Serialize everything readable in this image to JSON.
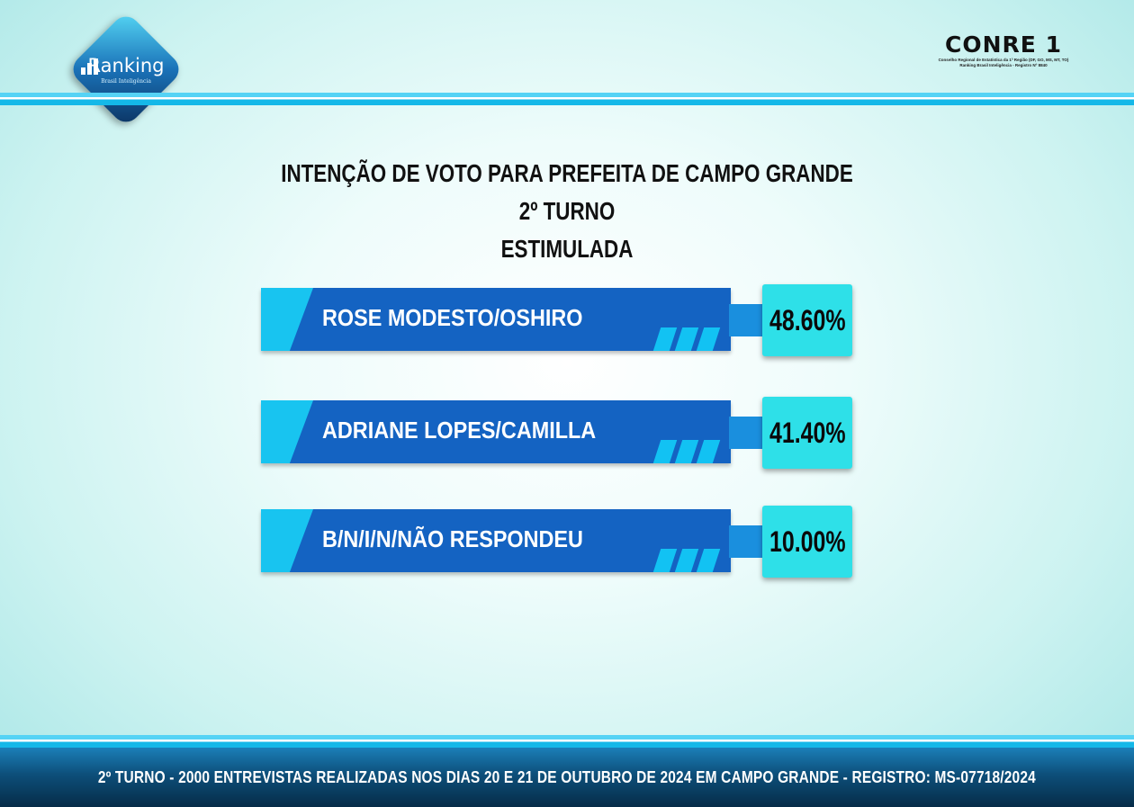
{
  "header": {
    "logo_name": "Ranking",
    "logo_tagline": "Brasil Inteligência",
    "conre_title": "CONRE 1",
    "conre_line1": "Conselho Regional de Estatística da 1ª Região (DF, GO, MS, MT, TO)",
    "conre_line2": "Ranking Brasil Inteligência - Registro Nº 8840"
  },
  "chart_data": {
    "type": "bar",
    "title_line1": "INTENÇÃO DE VOTO PARA PREFEITA DE CAMPO GRANDE 2º TURNO",
    "title_line2": "ESTIMULADA",
    "categories": [
      "ROSE MODESTO/OSHIRO",
      "ADRIANE LOPES/CAMILLA",
      "B/N/I/N/NÃO RESPONDEU"
    ],
    "values": [
      48.6,
      41.4,
      10.0
    ],
    "value_labels": [
      "48.60%",
      "41.40%",
      "10.00%"
    ],
    "colors": {
      "bar": "#1463c2",
      "accent": "#18c4f0",
      "value_box": "#2ee0e8"
    }
  },
  "footer": {
    "text": "2º TURNO - 2000 ENTREVISTAS REALIZADAS NOS DIAS 20 E 21 DE OUTUBRO DE 2024 EM CAMPO GRANDE - REGISTRO: MS-07718/2024"
  }
}
